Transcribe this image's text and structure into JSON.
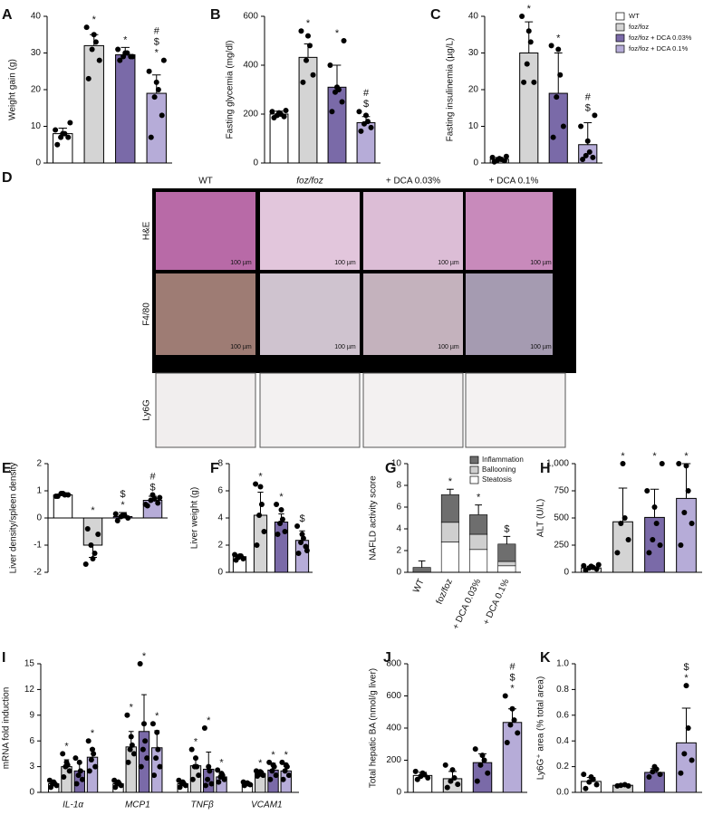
{
  "groups": [
    {
      "name": "WT",
      "color": "#ffffff"
    },
    {
      "name": "foz/foz",
      "color": "#d4d4d4"
    },
    {
      "name": "foz/foz + DCA 0.03%",
      "color": "#7a6aa8"
    },
    {
      "name": "foz/foz + DCA 0.1%",
      "color": "#b6acd8"
    }
  ],
  "micrographs": {
    "label": "D",
    "columns": [
      "WT",
      "foz/foz",
      "+ DCA 0.03%",
      "+ DCA 0.1%"
    ],
    "rows": [
      "H&E",
      "F4/80",
      "Ly6G"
    ],
    "scale_bar": "100 µm"
  },
  "chart_data": [
    {
      "type": "bar",
      "label": "A",
      "ylabel": "Weight gain (g)",
      "ylim": [
        0,
        40
      ],
      "yticks": [
        0,
        10,
        20,
        30,
        40
      ],
      "values": [
        8,
        32,
        29.5,
        19
      ],
      "errors": [
        1.5,
        3,
        2,
        5
      ],
      "points": [
        [
          5,
          7,
          7,
          8,
          8,
          9,
          11
        ],
        [
          23,
          28,
          31,
          33,
          35,
          37
        ],
        [
          28,
          29,
          29,
          30,
          30,
          31,
          29
        ],
        [
          7,
          13,
          18,
          20,
          22,
          25,
          28
        ]
      ],
      "annotations": [
        [],
        [
          "*"
        ],
        [
          "*"
        ],
        [
          "#",
          "$",
          "*"
        ]
      ]
    },
    {
      "type": "bar",
      "label": "B",
      "ylabel": "Fasting glycemia (mg/dl)",
      "ylim": [
        0,
        600
      ],
      "yticks": [
        0,
        200,
        400,
        600
      ],
      "values": [
        200,
        432,
        310,
        165
      ],
      "errors": [
        12,
        55,
        90,
        25
      ],
      "points": [
        [
          185,
          190,
          195,
          200,
          205,
          210,
          215
        ],
        [
          330,
          360,
          420,
          480,
          520,
          540
        ],
        [
          210,
          250,
          290,
          300,
          310,
          400,
          500
        ],
        [
          130,
          145,
          160,
          170,
          195,
          210
        ]
      ],
      "annotations": [
        [],
        [
          "*"
        ],
        [
          "*"
        ],
        [
          "#",
          "$"
        ]
      ]
    },
    {
      "type": "bar",
      "label": "C",
      "ylabel": "Fasting insulinemia (µg/L)",
      "ylim": [
        0,
        40
      ],
      "yticks": [
        0,
        10,
        20,
        30,
        40
      ],
      "values": [
        1,
        30,
        19,
        5
      ],
      "errors": [
        0.5,
        8.5,
        11,
        6
      ],
      "points": [
        [
          0.3,
          0.6,
          0.8,
          1,
          1.2,
          1.5,
          1.8
        ],
        [
          22,
          22,
          27,
          33,
          36,
          40
        ],
        [
          7,
          10,
          18,
          24,
          31,
          32
        ],
        [
          1,
          1.5,
          2,
          3,
          6,
          10,
          13
        ]
      ],
      "annotations": [
        [],
        [
          "*"
        ],
        [
          "*"
        ],
        [
          "#",
          "$"
        ]
      ]
    },
    {
      "type": "bar",
      "label": "E",
      "ylabel": "Liver density/spleen density",
      "ylim": [
        -2,
        2
      ],
      "yticks": [
        -2,
        -1,
        0,
        1,
        2
      ],
      "values": [
        0.85,
        -1.0,
        0.05,
        0.65
      ],
      "errors": [
        0.08,
        0.45,
        0.15,
        0.15
      ],
      "points": [
        [
          0.8,
          0.85,
          0.9,
          0.85,
          0.9,
          0.8
        ],
        [
          -0.4,
          -0.6,
          -1.0,
          -1.3,
          -1.5,
          -1.7
        ],
        [
          -0.1,
          0,
          0.05,
          0.1,
          0.1,
          0.15
        ],
        [
          0.45,
          0.55,
          0.65,
          0.7,
          0.85,
          0.5,
          0.75
        ]
      ],
      "annotations": [
        [],
        [
          "*"
        ],
        [
          "$",
          "*"
        ],
        [
          "#",
          "$"
        ]
      ]
    },
    {
      "type": "bar",
      "label": "F",
      "ylabel": "Liver weight (g)",
      "ylim": [
        0,
        8
      ],
      "yticks": [
        0,
        2,
        4,
        6,
        8
      ],
      "values": [
        1.15,
        4.2,
        3.7,
        2.35
      ],
      "errors": [
        0.1,
        1.7,
        0.6,
        0.7
      ],
      "points": [
        [
          0.9,
          1,
          1.1,
          1.2,
          1.2,
          1.3
        ],
        [
          2,
          3,
          4.2,
          5,
          6.3,
          6.5
        ],
        [
          2.8,
          3,
          3.6,
          3.9,
          4.6,
          5
        ],
        [
          1.4,
          1.9,
          2.2,
          2.5,
          2.8,
          3.4,
          1.6
        ]
      ],
      "annotations": [
        [],
        [
          "*"
        ],
        [
          "*"
        ],
        [
          "$"
        ]
      ]
    },
    {
      "type": "stacked_bar",
      "label": "G",
      "ylabel": "NAFLD activity score",
      "ylim": [
        0,
        10
      ],
      "yticks": [
        0,
        2,
        4,
        6,
        8,
        10
      ],
      "categories": [
        "WT",
        "foz/foz",
        "+ DCA 0.03%",
        "+ DCA 0.1%"
      ],
      "series": [
        {
          "name": "Steatosis",
          "color": "#ffffff",
          "values": [
            0,
            2.8,
            2.1,
            0.6
          ]
        },
        {
          "name": "Ballooning",
          "color": "#cfcfcf",
          "values": [
            0,
            1.8,
            1.4,
            0.4
          ]
        },
        {
          "name": "Inflammation",
          "color": "#6e6e6e",
          "values": [
            0.45,
            2.55,
            1.8,
            1.6
          ],
          "errors": [
            0.6,
            0.5,
            0.9,
            0.7
          ]
        }
      ],
      "annotations": [
        [],
        [
          "*"
        ],
        [
          "*"
        ],
        [
          "$"
        ]
      ]
    },
    {
      "type": "bar",
      "label": "H",
      "ylabel": "ALT (U/L)",
      "ylim": [
        0,
        1000
      ],
      "yticks": [
        0,
        250,
        500,
        750,
        {
          "value": 1000,
          "label": "1,000"
        }
      ],
      "values": [
        40,
        465,
        505,
        680
      ],
      "errors": [
        15,
        310,
        260,
        320
      ],
      "points": [
        [
          20,
          30,
          40,
          45,
          55,
          60,
          70
        ],
        [
          180,
          300,
          450,
          500,
          1000
        ],
        [
          180,
          250,
          300,
          450,
          600,
          750,
          1000
        ],
        [
          250,
          450,
          550,
          750,
          980,
          1000
        ]
      ],
      "annotations": [
        [],
        [
          "*"
        ],
        [
          "*"
        ],
        [
          "*"
        ]
      ]
    },
    {
      "type": "grouped_bar",
      "label": "I",
      "ylabel": "mRNA fold induction",
      "ylim": [
        0,
        15
      ],
      "yticks": [
        0,
        3,
        6,
        9,
        12,
        15
      ],
      "categories": [
        "IL-1α",
        "MCP1",
        "TNFβ",
        "VCAM1"
      ],
      "series": [
        {
          "values": [
            1,
            1,
            1,
            1
          ],
          "errors": [
            0.3,
            0.3,
            0.3,
            0.1
          ],
          "points": [
            [
              0.6,
              0.8,
              1,
              1,
              1.2,
              1.4
            ],
            [
              0.6,
              0.8,
              1,
              1,
              1.2,
              1.4
            ],
            [
              0.6,
              0.8,
              1,
              1,
              1.2,
              1.4
            ],
            [
              0.8,
              0.9,
              1,
              1,
              1.1,
              1.2
            ]
          ],
          "annotations": [
            [],
            [],
            [],
            []
          ]
        },
        {
          "values": [
            3,
            5.3,
            3.1,
            2.2
          ],
          "errors": [
            0.8,
            1.8,
            0.9,
            0.2
          ],
          "points": [
            [
              1.8,
              2.5,
              3,
              3.2,
              3.5,
              4.5
            ],
            [
              3.5,
              4.5,
              5,
              5.5,
              6.5,
              9
            ],
            [
              1.5,
              2,
              3,
              3,
              4,
              5
            ],
            [
              1.9,
              2,
              2.1,
              2.3,
              2.4,
              2.5
            ]
          ],
          "annotations": [
            [
              "*"
            ],
            [
              "*"
            ],
            [
              "*"
            ],
            [
              "*"
            ]
          ]
        },
        {
          "values": [
            2.5,
            7.1,
            2.7,
            2.6
          ],
          "errors": [
            0.9,
            4.3,
            2,
            0.8
          ],
          "points": [
            [
              1,
              1.5,
              2,
              2.5,
              3.5,
              4
            ],
            [
              3,
              4,
              5,
              6,
              8,
              15
            ],
            [
              0.8,
              1,
              1.5,
              2.5,
              3,
              7.5
            ],
            [
              1.5,
              2,
              2.5,
              3,
              3.2,
              3.5
            ]
          ],
          "annotations": [
            [],
            [
              "*"
            ],
            [
              "*"
            ],
            [
              "*"
            ]
          ]
        },
        {
          "values": [
            4.1,
            5.2,
            1.8,
            2.5
          ],
          "errors": [
            1,
            2,
            0.5,
            0.5
          ],
          "points": [
            [
              2.5,
              3,
              3.8,
              4.5,
              5,
              6
            ],
            [
              2,
              3,
              4,
              5,
              7,
              8
            ],
            [
              1.2,
              1.5,
              1.8,
              2,
              2.2,
              2.6
            ],
            [
              1.5,
              2,
              2.5,
              3,
              3.2,
              3.5
            ]
          ],
          "annotations": [
            [
              "*"
            ],
            [
              "*"
            ],
            [
              "*"
            ],
            [
              "*"
            ]
          ]
        }
      ]
    },
    {
      "type": "bar",
      "label": "J",
      "ylabel": "Total hepatic BA (nmol/g liver)",
      "ylim": [
        0,
        800
      ],
      "yticks": [
        0,
        200,
        400,
        600,
        800
      ],
      "values": [
        105,
        85,
        185,
        435
      ],
      "errors": [
        20,
        45,
        55,
        85
      ],
      "points": [
        [
          80,
          90,
          100,
          110,
          120,
          130
        ],
        [
          30,
          50,
          70,
          90,
          140,
          170
        ],
        [
          70,
          120,
          170,
          200,
          230,
          270
        ],
        [
          310,
          370,
          420,
          450,
          520,
          600
        ]
      ],
      "annotations": [
        [],
        [],
        [],
        [
          "#",
          "$",
          "*"
        ]
      ]
    },
    {
      "type": "bar",
      "label": "K",
      "ylabel": "Ly6G⁺ area (% total area)",
      "ylim": [
        0,
        1
      ],
      "yticks": [
        {
          "value": 0,
          "label": "0.0"
        },
        0.2,
        0.4,
        0.6,
        0.8,
        {
          "value": 1,
          "label": "1.0"
        }
      ],
      "values": [
        0.085,
        0.055,
        0.155,
        0.385
      ],
      "errors": [
        0.03,
        0.01,
        0.03,
        0.27
      ],
      "points": [
        [
          0.03,
          0.06,
          0.08,
          0.1,
          0.12,
          0.14
        ],
        [
          0.05,
          0.05,
          0.055,
          0.06
        ],
        [
          0.12,
          0.14,
          0.16,
          0.18,
          0.2
        ],
        [
          0.15,
          0.25,
          0.3,
          0.5,
          0.83
        ]
      ],
      "annotations": [
        [],
        [],
        [],
        [
          "$",
          "*"
        ]
      ]
    }
  ]
}
